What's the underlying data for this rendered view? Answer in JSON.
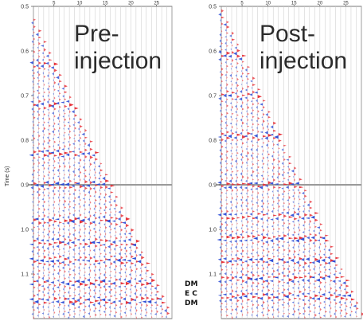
{
  "chart_data": [
    {
      "type": "heatmap",
      "panel_label_lines": [
        "Pre-",
        "injection"
      ],
      "ylabel": "Time (s)",
      "y_ticks": [
        "0.5",
        "0.6",
        "0.7",
        "0.8",
        "0.9",
        "1.0",
        "1.1"
      ],
      "x_ticks": [
        "5",
        "10",
        "15",
        "20",
        "25"
      ],
      "ylim": [
        0.5,
        1.2
      ],
      "x_range": [
        1,
        28
      ],
      "highlight_time": 0.9,
      "wiggle_colors": {
        "positive": "#e8333a",
        "negative": "#2f4fd8"
      },
      "first_arrival_start": {
        "x": 1,
        "t": 0.53
      },
      "first_arrival_end": {
        "x": 28,
        "t": 1.2
      },
      "reflection_times": [
        0.63,
        0.72,
        0.83,
        0.9,
        0.98,
        1.03,
        1.07,
        1.12,
        1.16
      ]
    },
    {
      "type": "heatmap",
      "panel_label_lines": [
        "Post-",
        "injection"
      ],
      "ylabel": "",
      "y_ticks": [
        "0.5",
        "0.6",
        "0.7",
        "0.8",
        "0.9",
        "1.0",
        "1.1"
      ],
      "x_ticks": [
        "5",
        "10",
        "15",
        "20",
        "25"
      ],
      "ylim": [
        0.5,
        1.2
      ],
      "x_range": [
        1,
        28
      ],
      "highlight_time": 0.9,
      "wiggle_colors": {
        "positive": "#e8333a",
        "negative": "#2f4fd8"
      },
      "first_arrival_start": {
        "x": 1,
        "t": 0.51
      },
      "first_arrival_end": {
        "x": 28,
        "t": 1.19
      },
      "reflection_times": [
        0.61,
        0.7,
        0.79,
        0.9,
        0.97,
        1.02,
        1.07,
        1.11,
        1.15
      ]
    }
  ],
  "edge_fragments": [
    "DM",
    "E C",
    "DM"
  ]
}
